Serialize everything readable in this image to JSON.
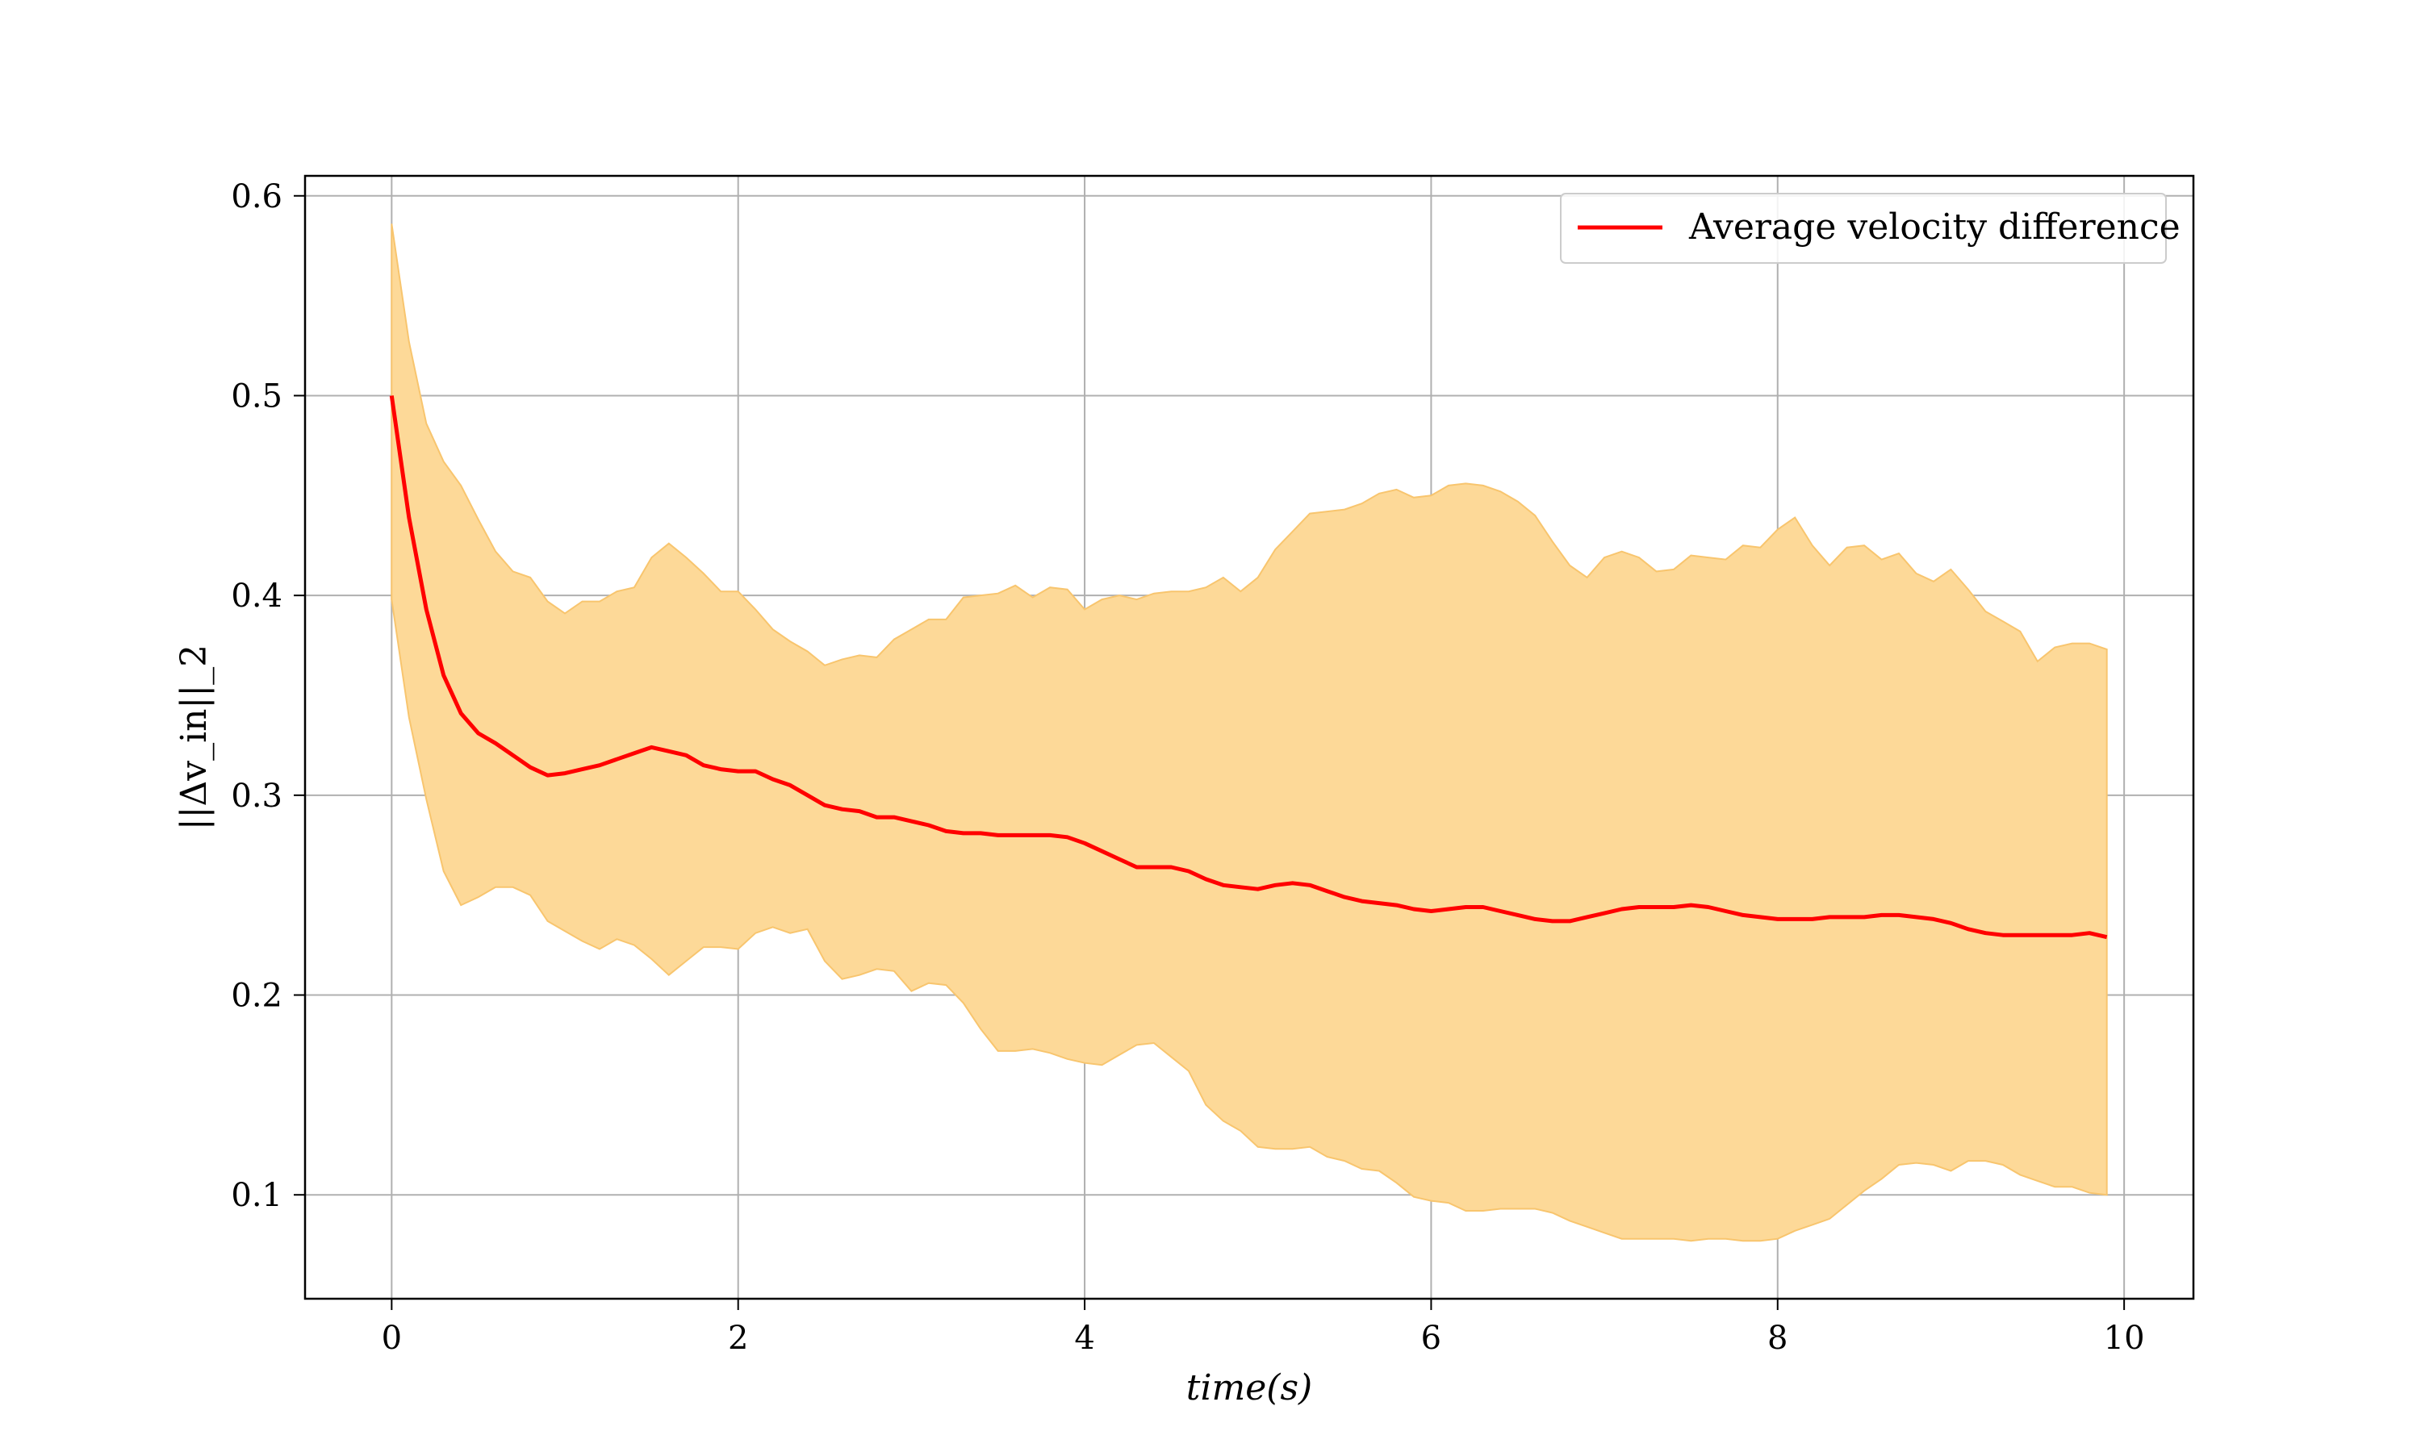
{
  "chart_data": {
    "type": "line",
    "title": "",
    "xlabel": "time(s)",
    "ylabel": "||Δv_in||_2",
    "xlim": [
      -0.5,
      10.4
    ],
    "ylim": [
      0.048,
      0.61
    ],
    "xticks": [
      "0",
      "2",
      "4",
      "6",
      "8",
      "10"
    ],
    "yticks": [
      "0.1",
      "0.2",
      "0.3",
      "0.4",
      "0.5",
      "0.6"
    ],
    "grid": true,
    "legend_position": "top-right",
    "colors": {
      "line": "#ff0000",
      "band": "#fdd998",
      "band_edge": "#f8c56e",
      "grid": "#b0b0b0"
    },
    "x": [
      0.0,
      0.1,
      0.2,
      0.3,
      0.4,
      0.5,
      0.6,
      0.7,
      0.8,
      0.9,
      1.0,
      1.1,
      1.2,
      1.3,
      1.4,
      1.5,
      1.6,
      1.7,
      1.8,
      1.9,
      2.0,
      2.1,
      2.2,
      2.3,
      2.4,
      2.5,
      2.6,
      2.7,
      2.8,
      2.9,
      3.0,
      3.1,
      3.2,
      3.3,
      3.4,
      3.5,
      3.6,
      3.7,
      3.8,
      3.9,
      4.0,
      4.1,
      4.2,
      4.3,
      4.4,
      4.5,
      4.6,
      4.7,
      4.8,
      4.9,
      5.0,
      5.1,
      5.2,
      5.3,
      5.4,
      5.5,
      5.6,
      5.7,
      5.8,
      5.9,
      6.0,
      6.1,
      6.2,
      6.3,
      6.4,
      6.5,
      6.6,
      6.7,
      6.8,
      6.9,
      7.0,
      7.1,
      7.2,
      7.3,
      7.4,
      7.5,
      7.6,
      7.7,
      7.8,
      7.9,
      8.0,
      8.1,
      8.2,
      8.3,
      8.4,
      8.5,
      8.6,
      8.7,
      8.8,
      8.9,
      9.0,
      9.1,
      9.2,
      9.3,
      9.4,
      9.5,
      9.6,
      9.7,
      9.8,
      9.9
    ],
    "series": [
      {
        "name": "Average velocity difference",
        "values": [
          0.5,
          0.439,
          0.393,
          0.36,
          0.341,
          0.331,
          0.326,
          0.32,
          0.314,
          0.31,
          0.311,
          0.313,
          0.315,
          0.318,
          0.321,
          0.324,
          0.322,
          0.32,
          0.315,
          0.313,
          0.312,
          0.312,
          0.308,
          0.305,
          0.3,
          0.295,
          0.293,
          0.292,
          0.289,
          0.289,
          0.287,
          0.285,
          0.282,
          0.281,
          0.281,
          0.28,
          0.28,
          0.28,
          0.28,
          0.279,
          0.276,
          0.272,
          0.268,
          0.264,
          0.264,
          0.264,
          0.262,
          0.258,
          0.255,
          0.254,
          0.253,
          0.255,
          0.256,
          0.255,
          0.252,
          0.249,
          0.247,
          0.246,
          0.245,
          0.243,
          0.242,
          0.243,
          0.244,
          0.244,
          0.242,
          0.24,
          0.238,
          0.237,
          0.237,
          0.239,
          0.241,
          0.243,
          0.244,
          0.244,
          0.244,
          0.245,
          0.244,
          0.242,
          0.24,
          0.239,
          0.238,
          0.238,
          0.238,
          0.239,
          0.239,
          0.239,
          0.24,
          0.24,
          0.239,
          0.238,
          0.236,
          0.233,
          0.231,
          0.23,
          0.23,
          0.23,
          0.23,
          0.23,
          0.231,
          0.229
        ]
      }
    ],
    "band": {
      "upper": [
        0.586,
        0.527,
        0.486,
        0.467,
        0.455,
        0.438,
        0.422,
        0.412,
        0.409,
        0.397,
        0.391,
        0.397,
        0.397,
        0.402,
        0.404,
        0.419,
        0.426,
        0.419,
        0.411,
        0.402,
        0.402,
        0.393,
        0.383,
        0.377,
        0.372,
        0.365,
        0.368,
        0.37,
        0.369,
        0.378,
        0.383,
        0.388,
        0.388,
        0.399,
        0.4,
        0.401,
        0.405,
        0.399,
        0.404,
        0.403,
        0.393,
        0.398,
        0.4,
        0.398,
        0.401,
        0.402,
        0.402,
        0.404,
        0.409,
        0.402,
        0.409,
        0.423,
        0.432,
        0.441,
        0.442,
        0.443,
        0.446,
        0.451,
        0.453,
        0.449,
        0.45,
        0.455,
        0.456,
        0.455,
        0.452,
        0.447,
        0.44,
        0.427,
        0.415,
        0.409,
        0.419,
        0.422,
        0.419,
        0.412,
        0.413,
        0.42,
        0.419,
        0.418,
        0.425,
        0.424,
        0.433,
        0.439,
        0.425,
        0.415,
        0.424,
        0.425,
        0.418,
        0.421,
        0.411,
        0.407,
        0.413,
        0.403,
        0.392,
        0.387,
        0.382,
        0.367,
        0.374,
        0.376,
        0.376,
        0.373
      ],
      "lower": [
        0.398,
        0.339,
        0.298,
        0.262,
        0.245,
        0.249,
        0.254,
        0.254,
        0.25,
        0.237,
        0.232,
        0.227,
        0.223,
        0.228,
        0.225,
        0.218,
        0.21,
        0.217,
        0.224,
        0.224,
        0.223,
        0.231,
        0.234,
        0.231,
        0.233,
        0.217,
        0.208,
        0.21,
        0.213,
        0.212,
        0.202,
        0.206,
        0.205,
        0.196,
        0.183,
        0.172,
        0.172,
        0.173,
        0.171,
        0.168,
        0.166,
        0.165,
        0.17,
        0.175,
        0.176,
        0.169,
        0.162,
        0.145,
        0.137,
        0.132,
        0.124,
        0.123,
        0.123,
        0.124,
        0.119,
        0.117,
        0.113,
        0.112,
        0.106,
        0.099,
        0.097,
        0.096,
        0.092,
        0.092,
        0.093,
        0.093,
        0.093,
        0.091,
        0.087,
        0.084,
        0.081,
        0.078,
        0.078,
        0.078,
        0.078,
        0.077,
        0.078,
        0.078,
        0.077,
        0.077,
        0.078,
        0.082,
        0.085,
        0.088,
        0.095,
        0.102,
        0.108,
        0.115,
        0.116,
        0.115,
        0.112,
        0.117,
        0.117,
        0.115,
        0.11,
        0.107,
        0.104,
        0.104,
        0.101,
        0.1
      ]
    }
  }
}
